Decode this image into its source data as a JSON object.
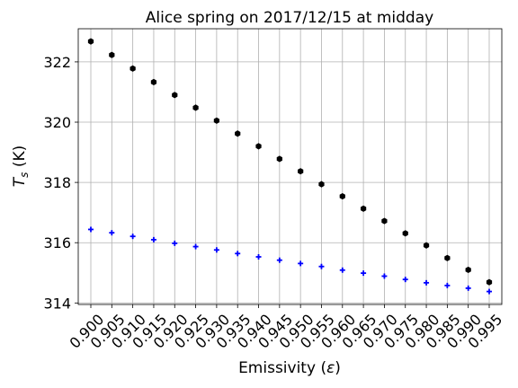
{
  "chart_data": {
    "type": "scatter",
    "title": "Alice spring on 2017/12/15 at midday",
    "xlabel": "Emissivity (ε)",
    "ylabel": "T_s (K)",
    "x": [
      0.9,
      0.905,
      0.91,
      0.915,
      0.92,
      0.925,
      0.93,
      0.935,
      0.94,
      0.945,
      0.95,
      0.955,
      0.96,
      0.965,
      0.97,
      0.975,
      0.98,
      0.985,
      0.99,
      0.995
    ],
    "x_tick_labels": [
      "0.900",
      "0.905",
      "0.910",
      "0.915",
      "0.920",
      "0.925",
      "0.930",
      "0.935",
      "0.940",
      "0.945",
      "0.950",
      "0.955",
      "0.960",
      "0.965",
      "0.970",
      "0.975",
      "0.980",
      "0.985",
      "0.990",
      "0.995"
    ],
    "y_ticks": [
      314,
      316,
      318,
      320,
      322
    ],
    "ylim": [
      313.95,
      323.1
    ],
    "grid": true,
    "series": [
      {
        "color": "#000000",
        "marker": "hexagon",
        "values": [
          322.68,
          322.23,
          321.78,
          321.33,
          320.9,
          320.48,
          320.05,
          319.62,
          319.2,
          318.78,
          318.37,
          317.94,
          317.54,
          317.13,
          316.72,
          316.31,
          315.91,
          315.49,
          315.1,
          314.69
        ]
      },
      {
        "color": "#0000ff",
        "marker": "plus",
        "values": [
          316.44,
          316.33,
          316.21,
          316.1,
          315.98,
          315.87,
          315.76,
          315.64,
          315.53,
          315.42,
          315.31,
          315.21,
          315.09,
          314.99,
          314.89,
          314.78,
          314.67,
          314.58,
          314.49,
          314.38
        ]
      }
    ]
  }
}
